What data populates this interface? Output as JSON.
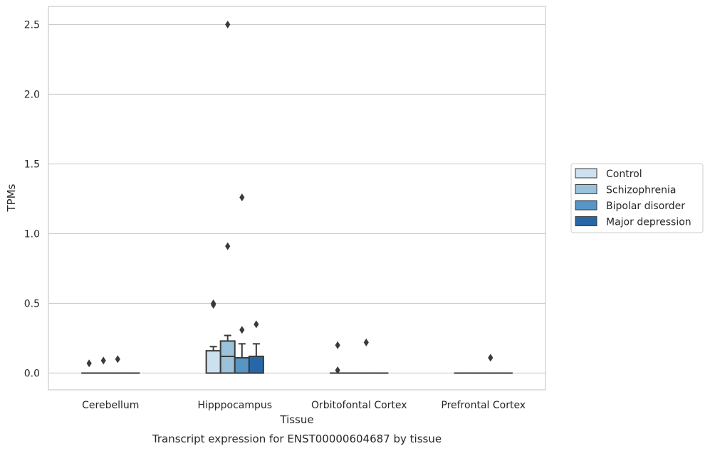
{
  "chart_data": {
    "type": "box",
    "title": "",
    "caption": "Transcript expression for ENST00000604687 by tissue",
    "xlabel": "Tissue",
    "ylabel": "TPMs",
    "ylim": [
      -0.12,
      2.63
    ],
    "yticks": [
      "0.0",
      "0.5",
      "1.0",
      "1.5",
      "2.0",
      "2.5"
    ],
    "grid": "horizontal",
    "legend_position": "right",
    "categories": [
      "Cerebellum",
      "Hipppocampus",
      "Orbitofontal Cortex",
      "Prefrontal Cortex"
    ],
    "series": [
      {
        "name": "Control",
        "color": "#cde0f0",
        "boxes": [
          {
            "q1": 0,
            "median": 0,
            "q3": 0,
            "whislo": 0,
            "whishi": 0,
            "fliers": [
              0.07
            ]
          },
          {
            "q1": 0,
            "median": 0,
            "q3": 0.16,
            "whislo": 0,
            "whishi": 0.19,
            "fliers": [
              0.49,
              0.5
            ]
          },
          {
            "q1": 0,
            "median": 0,
            "q3": 0,
            "whislo": 0,
            "whishi": 0,
            "fliers": [
              0.2,
              0.02
            ]
          },
          {
            "q1": 0,
            "median": 0,
            "q3": 0,
            "whislo": 0,
            "whishi": 0,
            "fliers": []
          }
        ]
      },
      {
        "name": "Schizophrenia",
        "color": "#9ac2da",
        "boxes": [
          {
            "q1": 0,
            "median": 0,
            "q3": 0,
            "whislo": 0,
            "whishi": 0,
            "fliers": [
              0.09
            ]
          },
          {
            "q1": 0,
            "median": 0.12,
            "q3": 0.23,
            "whislo": 0,
            "whishi": 0.27,
            "fliers": [
              0.91,
              2.5
            ]
          },
          {
            "q1": 0,
            "median": 0,
            "q3": 0,
            "whislo": 0,
            "whishi": 0,
            "fliers": []
          },
          {
            "q1": 0,
            "median": 0,
            "q3": 0,
            "whislo": 0,
            "whishi": 0,
            "fliers": []
          }
        ]
      },
      {
        "name": "Bipolar disorder",
        "color": "#5596c6",
        "boxes": [
          {
            "q1": 0,
            "median": 0,
            "q3": 0,
            "whislo": 0,
            "whishi": 0,
            "fliers": [
              0.1
            ]
          },
          {
            "q1": 0,
            "median": 0,
            "q3": 0.11,
            "whislo": 0,
            "whishi": 0.21,
            "fliers": [
              0.31,
              1.26
            ]
          },
          {
            "q1": 0,
            "median": 0,
            "q3": 0,
            "whislo": 0,
            "whishi": 0,
            "fliers": [
              0.22
            ]
          },
          {
            "q1": 0,
            "median": 0,
            "q3": 0,
            "whislo": 0,
            "whishi": 0,
            "fliers": [
              0.11
            ]
          }
        ]
      },
      {
        "name": "Major depression",
        "color": "#2767a7",
        "boxes": [
          {
            "q1": 0,
            "median": 0,
            "q3": 0,
            "whislo": 0,
            "whishi": 0,
            "fliers": []
          },
          {
            "q1": 0,
            "median": 0,
            "q3": 0.12,
            "whislo": 0,
            "whishi": 0.21,
            "fliers": [
              0.35
            ]
          },
          {
            "q1": 0,
            "median": 0,
            "q3": 0,
            "whislo": 0,
            "whishi": 0,
            "fliers": []
          },
          {
            "q1": 0,
            "median": 0,
            "q3": 0,
            "whislo": 0,
            "whishi": 0,
            "fliers": []
          }
        ]
      }
    ]
  }
}
